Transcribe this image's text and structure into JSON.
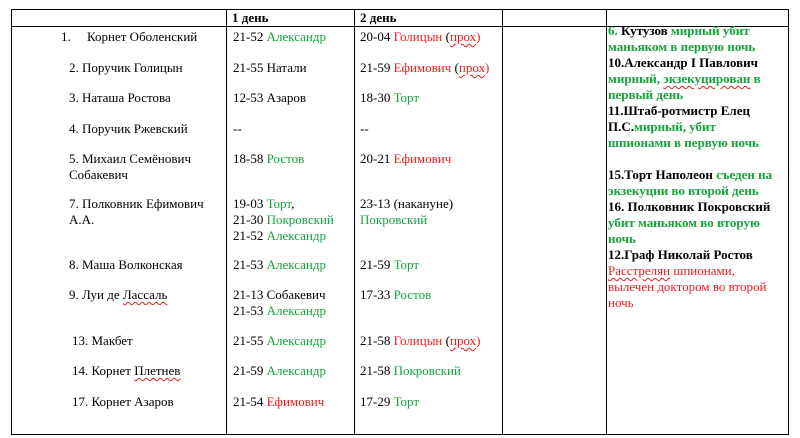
{
  "table": {
    "headers": [
      "",
      "1 день",
      "2 день",
      "",
      ""
    ],
    "rows": [
      {
        "num": "1.",
        "name": "Корнет Оболенский",
        "d1": [
          [
            {
              "t": "21-52 "
            },
            {
              "t": "Александр",
              "c": "green"
            }
          ]
        ],
        "d2": [
          [
            {
              "t": "20-04 "
            },
            {
              "t": "Голицын",
              "c": "red"
            },
            {
              "t": " ("
            },
            {
              "t": "прох",
              "c": "red",
              "s": true
            },
            {
              "t": ")",
              "c": "red"
            }
          ]
        ]
      },
      {
        "num": "2.",
        "name": "Поручик Голицын",
        "d1": [
          [
            {
              "t": "21-55 Натали"
            }
          ]
        ],
        "d2": [
          [
            {
              "t": "21-59 "
            },
            {
              "t": "Ефимович",
              "c": "red"
            },
            {
              "t": " ("
            },
            {
              "t": "прох",
              "c": "red",
              "s": true
            },
            {
              "t": ")",
              "c": "red"
            }
          ]
        ]
      },
      {
        "num": "3.",
        "name": "Наташа Ростова",
        "d1": [
          [
            {
              "t": "12-53 Азаров"
            }
          ]
        ],
        "d2": [
          [
            {
              "t": "18-30 "
            },
            {
              "t": "Торт",
              "c": "green"
            }
          ]
        ]
      },
      {
        "num": "4.",
        "name": "Поручик Ржевский",
        "d1": [
          [
            {
              "t": "--"
            }
          ]
        ],
        "d2": [
          [
            {
              "t": "--"
            }
          ]
        ]
      },
      {
        "num": "5.",
        "name": "Михаил Семёнович",
        "name2": "Собакевич",
        "d1": [
          [
            {
              "t": "18-58 "
            },
            {
              "t": "Ростов",
              "c": "green"
            }
          ]
        ],
        "d2": [
          [
            {
              "t": "20-21 "
            },
            {
              "t": "Ефимович",
              "c": "red"
            }
          ]
        ]
      },
      {
        "num": "7.",
        "name": "Полковник Ефимович",
        "name2": "А.А.",
        "d1": [
          [
            {
              "t": "19-03 "
            },
            {
              "t": "Торт",
              "c": "green"
            },
            {
              "t": ","
            }
          ],
          [
            {
              "t": "21-30 "
            },
            {
              "t": "Покровский",
              "c": "green"
            }
          ],
          [
            {
              "t": "21-52 "
            },
            {
              "t": "Александр",
              "c": "green"
            }
          ]
        ],
        "d2": [
          [
            {
              "t": "23-13 (накануне)"
            }
          ],
          [
            {
              "t": "Покровский",
              "c": "green"
            }
          ]
        ]
      },
      {
        "num": "8.",
        "name": "Маша Волконская",
        "d1": [
          [
            {
              "t": "21-53 "
            },
            {
              "t": "Александр",
              "c": "green"
            }
          ]
        ],
        "d2": [
          [
            {
              "t": "21-59 "
            },
            {
              "t": "Торт",
              "c": "green"
            }
          ]
        ]
      },
      {
        "num": "9.",
        "name": "Луи де ",
        "name_squig": "Лассаль",
        "d1": [
          [
            {
              "t": "21-13 Собакевич"
            }
          ],
          [
            {
              "t": "21-53 "
            },
            {
              "t": "Александр",
              "c": "green"
            }
          ]
        ],
        "d2": [
          [
            {
              "t": "17-33 "
            },
            {
              "t": "Ростов",
              "c": "green"
            }
          ]
        ]
      },
      {
        "num": "13.",
        "name": "Макбет",
        "d1": [
          [
            {
              "t": "21-55 "
            },
            {
              "t": "Александр",
              "c": "green"
            }
          ]
        ],
        "d2": [
          [
            {
              "t": "21-58 "
            },
            {
              "t": "Голицын",
              "c": "red"
            },
            {
              "t": " ("
            },
            {
              "t": "прох",
              "c": "red",
              "s": true
            },
            {
              "t": ")",
              "c": "red"
            }
          ]
        ]
      },
      {
        "num": "14.",
        "name": "Корнет ",
        "name_squig": "Плетнев",
        "d1": [
          [
            {
              "t": "21-59 "
            },
            {
              "t": "Александр",
              "c": "green"
            }
          ]
        ],
        "d2": [
          [
            {
              "t": "21-58 "
            },
            {
              "t": "Покровский",
              "c": "green"
            }
          ]
        ]
      },
      {
        "num": "17.",
        "name": "Корнет Азаров",
        "d1": [
          [
            {
              "t": "21-54 "
            },
            {
              "t": "Ефимович",
              "c": "red"
            }
          ]
        ],
        "d2": [
          [
            {
              "t": "17-29 "
            },
            {
              "t": "Торт",
              "c": "green"
            }
          ]
        ]
      }
    ]
  },
  "notes": [
    [
      [
        {
          "t": "6.",
          "b": true,
          "c": "green"
        },
        {
          "t": " Кутузов ",
          "b": true
        },
        {
          "t": "мирный убит маньяком в первую ночь",
          "b": true,
          "c": "green"
        }
      ]
    ],
    [
      [
        {
          "t": "10.Александр І Павлович ",
          "b": true
        },
        {
          "t": "мирный, ",
          "b": true,
          "c": "green"
        },
        {
          "t": "экзекуцирован",
          "b": true,
          "c": "green",
          "s": true
        },
        {
          "t": " в первый день",
          "b": true,
          "c": "green"
        }
      ]
    ],
    [
      [
        {
          "t": "11.Штаб-ротмистр Елец П.С.",
          "b": true
        },
        {
          "t": "мирный, убит шпионами в первую ночь",
          "b": true,
          "c": "green"
        }
      ]
    ],
    [],
    [
      [
        {
          "t": "15.Торт Наполеон ",
          "b": true
        },
        {
          "t": "съеден на экзекуции во второй день",
          "b": true,
          "c": "green"
        }
      ]
    ],
    [
      [
        {
          "t": "16. Полковник Покровский ",
          "b": true
        },
        {
          "t": "убит маньяком во вторую ночь",
          "b": true,
          "c": "green"
        }
      ]
    ],
    [
      [
        {
          "t": "12.Граф Николай  Ростов",
          "b": true
        },
        {
          "t": " "
        },
        {
          "t": "Расстрелян",
          "c": "red",
          "s": true
        },
        {
          "t": " шпионами, вылечен доктором во второй ночь",
          "c": "red"
        }
      ]
    ]
  ]
}
